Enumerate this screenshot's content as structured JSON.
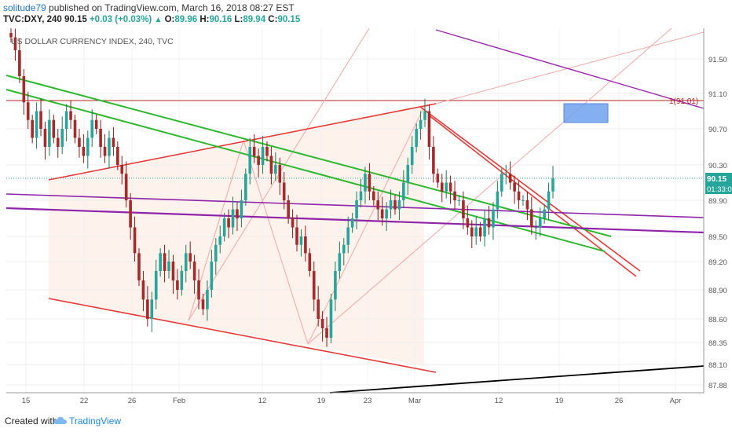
{
  "header": {
    "author": "solitude79",
    "published": " published on TradingView.com, March 16, 2018 08:27 EST",
    "symbol": "TVC:DXY, 240",
    "last": "90.15",
    "change": "+0.03 (+0.03%)",
    "open_label": "O:",
    "open": "89.96",
    "high_label": "H:",
    "high": "90.16",
    "low_label": "L:",
    "low": "89.94",
    "close_label": "C:",
    "close": "90.15"
  },
  "footer": {
    "created_with": "Created with",
    "brand": "TradingView"
  },
  "chart_data": {
    "type": "candlestick",
    "title": "US DOLLAR CURRENCY INDEX, 240, TVC",
    "y_ticks": [
      91.5,
      91.1,
      90.7,
      90.3,
      89.9,
      89.5,
      89.2,
      88.9,
      88.6,
      88.35,
      88.1,
      87.88
    ],
    "y_tick_labels": [
      "91.50",
      "91.10",
      "90.70",
      "90.30",
      "89.90",
      "89.50",
      "89.20",
      "88.90",
      "88.60",
      "88.35",
      "88.10",
      "87.88"
    ],
    "ylim": [
      87.75,
      91.85
    ],
    "x_tick_labels": [
      "15",
      "22",
      "26",
      "Feb",
      "12",
      "19",
      "23",
      "Mar",
      "12",
      "19",
      "26",
      "Apr"
    ],
    "last_price_label": "90.15",
    "countdown_label": "01:33:0",
    "level_label": "1(91.01)",
    "close_series": [
      91.75,
      91.6,
      91.3,
      91.0,
      90.8,
      90.6,
      90.9,
      90.7,
      90.5,
      90.8,
      90.6,
      90.5,
      90.7,
      90.9,
      90.8,
      90.6,
      90.5,
      90.4,
      90.6,
      90.8,
      90.7,
      90.5,
      90.4,
      90.6,
      90.5,
      90.3,
      90.2,
      89.9,
      89.6,
      89.3,
      89.0,
      88.8,
      88.6,
      88.8,
      89.1,
      89.3,
      89.1,
      89.2,
      89.0,
      88.9,
      89.1,
      89.3,
      89.2,
      89.0,
      88.8,
      88.7,
      88.9,
      89.2,
      89.4,
      89.5,
      89.7,
      89.6,
      89.8,
      89.7,
      89.9,
      90.2,
      90.5,
      90.4,
      90.3,
      90.5,
      90.4,
      90.2,
      90.3,
      90.1,
      89.9,
      89.7,
      89.6,
      89.4,
      89.5,
      89.3,
      89.1,
      88.8,
      88.6,
      88.5,
      88.4,
      88.8,
      89.1,
      89.3,
      89.4,
      89.6,
      89.7,
      89.9,
      90.0,
      90.2,
      90.0,
      89.9,
      89.8,
      89.7,
      89.8,
      89.9,
      89.8,
      89.9,
      90.1,
      90.3,
      90.5,
      90.7,
      90.8,
      90.9,
      90.5,
      90.2,
      90.1,
      90.0,
      90.1,
      90.0,
      89.9,
      89.9,
      89.7,
      89.6,
      89.5,
      89.6,
      89.5,
      89.7,
      89.6,
      89.8,
      90.0,
      90.2,
      90.2,
      90.1,
      90.0,
      89.9,
      89.9,
      89.8,
      89.6,
      89.6,
      89.7,
      89.8,
      90.0,
      90.15
    ]
  }
}
